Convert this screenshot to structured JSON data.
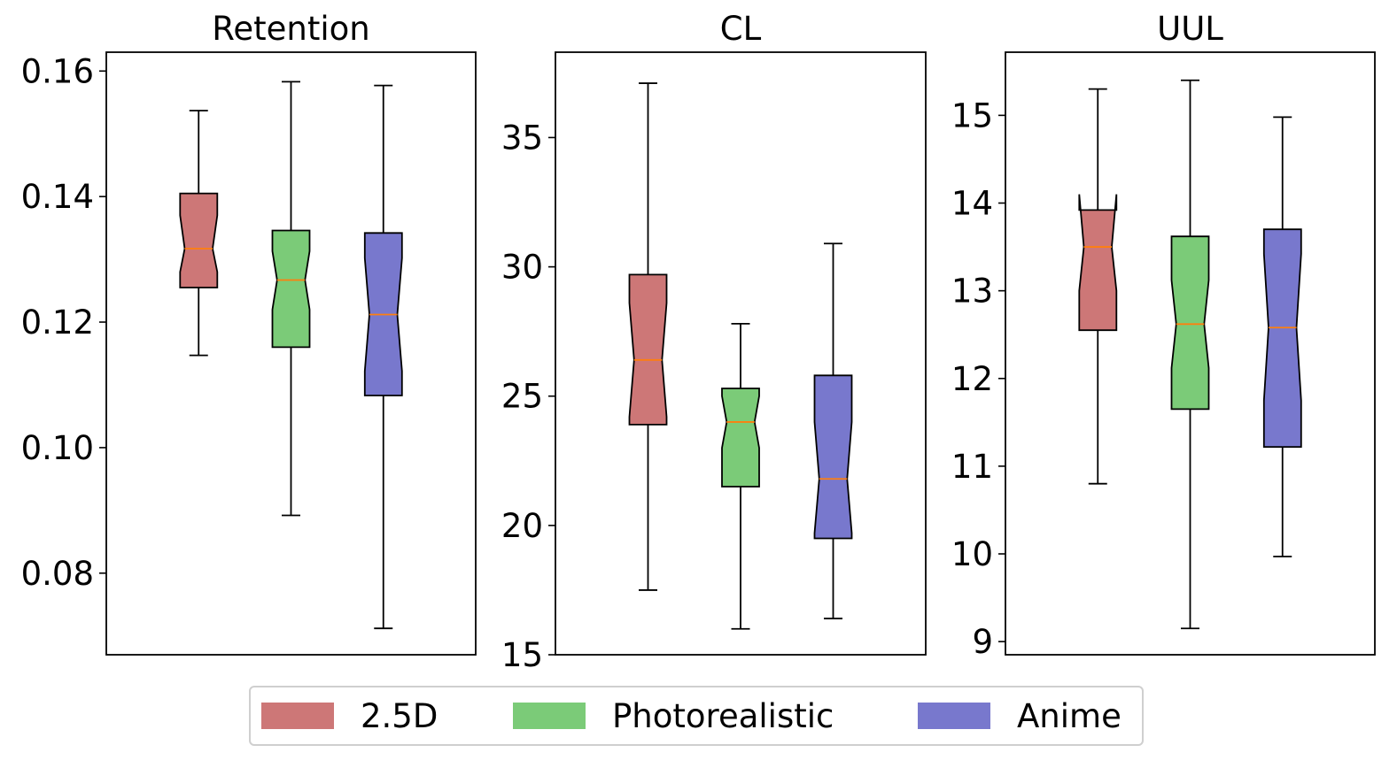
{
  "colors": {
    "2.5D": "#cd7777",
    "Photorealistic": "#7bcb78",
    "Anime": "#7878cd",
    "median": "#ff7f0e",
    "frame": "#000000"
  },
  "legend": {
    "placement": "bottom-center",
    "items": [
      {
        "label": "2.5D",
        "color": "#cd7777"
      },
      {
        "label": "Photorealistic",
        "color": "#7bcb78"
      },
      {
        "label": "Anime",
        "color": "#7878cd"
      }
    ]
  },
  "chart_data": [
    {
      "type": "boxplot",
      "notched": true,
      "title": "Retention",
      "xlabel": "",
      "ylabel": "",
      "ylim": [
        0.067,
        0.163
      ],
      "yticks": [
        0.08,
        0.1,
        0.12,
        0.14,
        0.16
      ],
      "ytick_labels": [
        "0.08",
        "0.10",
        "0.12",
        "0.14",
        "0.16"
      ],
      "grid": false,
      "boxes": [
        {
          "name": "2.5D",
          "whisker_low": 0.1147,
          "q1": 0.1255,
          "median": 0.1317,
          "q3": 0.1405,
          "whisker_high": 0.1537,
          "notch_low": 0.128,
          "notch_high": 0.137
        },
        {
          "name": "Photorealistic",
          "whisker_low": 0.0892,
          "q1": 0.116,
          "median": 0.1267,
          "q3": 0.1346,
          "whisker_high": 0.1583,
          "notch_low": 0.122,
          "notch_high": 0.1313
        },
        {
          "name": "Anime",
          "whisker_low": 0.0712,
          "q1": 0.1083,
          "median": 0.1212,
          "q3": 0.1342,
          "whisker_high": 0.1577,
          "notch_low": 0.1122,
          "notch_high": 0.1302
        }
      ]
    },
    {
      "type": "boxplot",
      "notched": true,
      "title": "CL",
      "xlabel": "",
      "ylabel": "",
      "ylim": [
        15.0,
        38.3
      ],
      "yticks": [
        15,
        20,
        25,
        30,
        35
      ],
      "ytick_labels": [
        "15",
        "20",
        "25",
        "30",
        "35"
      ],
      "grid": false,
      "boxes": [
        {
          "name": "2.5D",
          "whisker_low": 17.5,
          "q1": 23.9,
          "median": 26.4,
          "q3": 29.7,
          "whisker_high": 37.1,
          "notch_low": 24.2,
          "notch_high": 28.6
        },
        {
          "name": "Photorealistic",
          "whisker_low": 16.0,
          "q1": 21.5,
          "median": 24.0,
          "q3": 25.3,
          "whisker_high": 27.8,
          "notch_low": 23.0,
          "notch_high": 25.0
        },
        {
          "name": "Anime",
          "whisker_low": 16.4,
          "q1": 19.5,
          "median": 21.8,
          "q3": 25.8,
          "whisker_high": 30.9,
          "notch_low": 19.7,
          "notch_high": 24.0
        }
      ]
    },
    {
      "type": "boxplot",
      "notched": true,
      "title": "UUL",
      "xlabel": "",
      "ylabel": "",
      "ylim": [
        8.85,
        15.72
      ],
      "yticks": [
        9,
        10,
        11,
        12,
        13,
        14,
        15
      ],
      "ytick_labels": [
        "9",
        "10",
        "11",
        "12",
        "13",
        "14",
        "15"
      ],
      "grid": false,
      "boxes": [
        {
          "name": "2.5D",
          "whisker_low": 10.8,
          "q1": 12.55,
          "median": 13.5,
          "q3": 13.92,
          "whisker_high": 15.3,
          "notch_low": 13.0,
          "notch_high": 14.1
        },
        {
          "name": "Photorealistic",
          "whisker_low": 9.15,
          "q1": 11.65,
          "median": 12.62,
          "q3": 13.62,
          "whisker_high": 15.4,
          "notch_low": 12.12,
          "notch_high": 13.12
        },
        {
          "name": "Anime",
          "whisker_low": 9.97,
          "q1": 11.22,
          "median": 12.58,
          "q3": 13.7,
          "whisker_high": 14.98,
          "notch_low": 11.75,
          "notch_high": 13.42
        }
      ]
    }
  ]
}
